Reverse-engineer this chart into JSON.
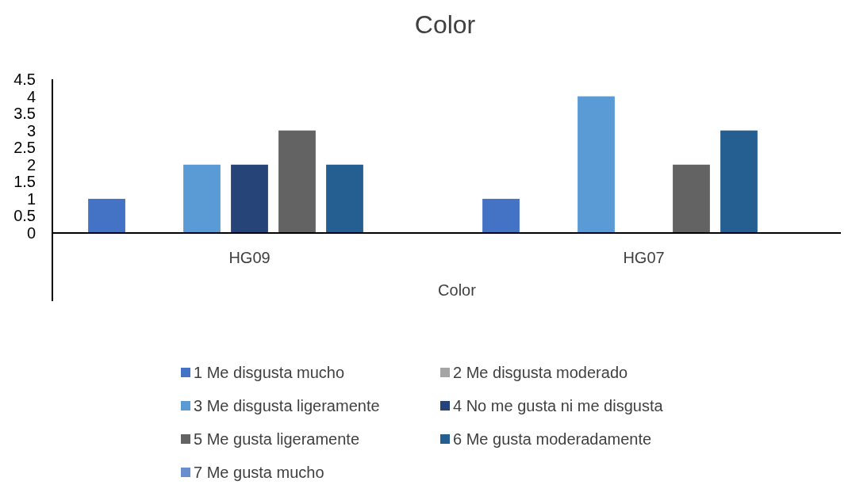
{
  "chart_data": {
    "type": "bar",
    "title": "Color",
    "xlabel": "Color",
    "categories": [
      "HG09",
      "HG07"
    ],
    "series": [
      {
        "name": "1 Me disgusta mucho",
        "color": "#4472c4",
        "values": [
          1,
          1
        ]
      },
      {
        "name": "2 Me disgusta moderado",
        "color": "#a5a5a5",
        "values": [
          0,
          0
        ]
      },
      {
        "name": "3 Me disgusta ligeramente",
        "color": "#5b9bd5",
        "values": [
          2,
          4
        ]
      },
      {
        "name": "4 No me gusta ni me disgusta",
        "color": "#264478",
        "values": [
          2,
          0
        ]
      },
      {
        "name": "5 Me gusta ligeramente",
        "color": "#636363",
        "values": [
          3,
          2
        ]
      },
      {
        "name": "6 Me gusta moderadamente",
        "color": "#255e91",
        "values": [
          2,
          3
        ]
      },
      {
        "name": "7 Me gusta mucho",
        "color": "#698ed0",
        "values": [
          0,
          0
        ]
      }
    ],
    "ylim": [
      0,
      4.5
    ],
    "yticks": [
      0,
      0.5,
      1,
      1.5,
      2,
      2.5,
      3,
      3.5,
      4,
      4.5
    ],
    "grid": false,
    "legend": "bottom"
  }
}
